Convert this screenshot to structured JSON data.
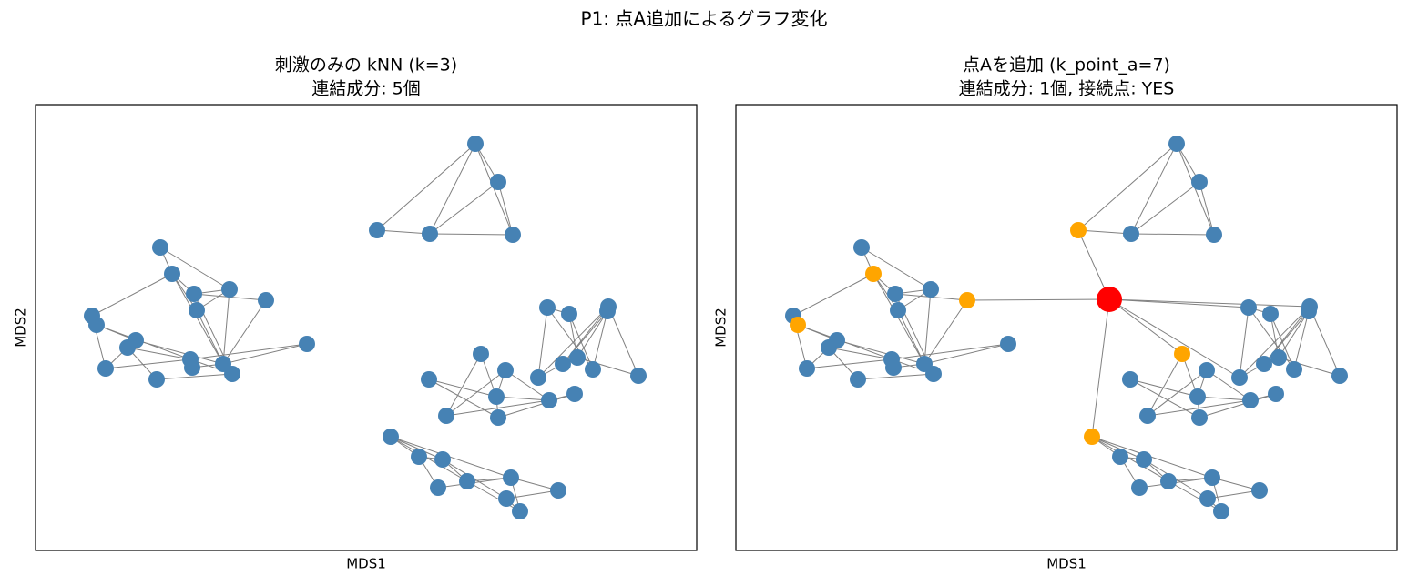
{
  "title": "P1: 点A追加によるグラフ変化",
  "chart_data": [
    {
      "type": "network",
      "title": [
        "刺激のみの kNN (k=3)",
        "連結成分: 5個"
      ],
      "xlabel": "MDS1",
      "ylabel": "MDS2",
      "node_color": "#4682b4",
      "edge_color": "#808080"
    },
    {
      "type": "network",
      "title": [
        "点Aを追加 (k_point_a=7)",
        "連結成分: 1個, 接続点: YES"
      ],
      "xlabel": "MDS1",
      "ylabel": "MDS2",
      "node_color": "#4682b4",
      "neighbor_color": "#ffa500",
      "new_point_color": "#ff0000",
      "edge_color": "#808080"
    }
  ]
}
